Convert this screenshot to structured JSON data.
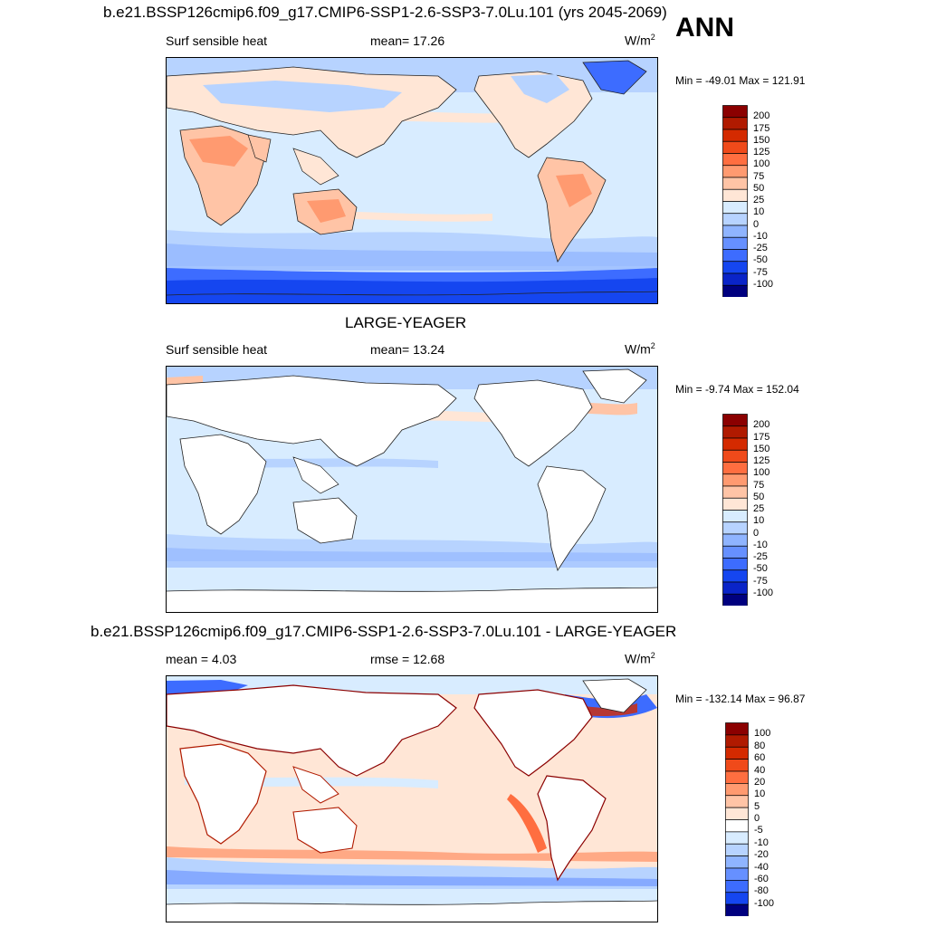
{
  "season": "ANN",
  "panels": [
    {
      "title": "b.e21.BSSP126cmip6.f09_g17.CMIP6-SSP1-2.6-SSP3-7.0Lu.101 (yrs 2045-2069)",
      "variable": "Surf sensible heat",
      "stat1": "mean=  17.26",
      "stat2": "",
      "units": "W/m",
      "units_sup": "2",
      "minmax": "Min = -49.01 Max = 121.91"
    },
    {
      "title": "LARGE-YEAGER",
      "variable": "Surf sensible heat",
      "stat1": "mean=  13.24",
      "stat2": "",
      "units": "W/m",
      "units_sup": "2",
      "minmax": "Min =  -9.74 Max = 152.04"
    },
    {
      "title": "b.e21.BSSP126cmip6.f09_g17.CMIP6-SSP1-2.6-SSP3-7.0Lu.101 - LARGE-YEAGER",
      "variable": "",
      "stat1": "mean =   4.03",
      "stat2": "rmse =  12.68",
      "units": "W/m",
      "units_sup": "2",
      "minmax": "Min = -132.14 Max =  96.87"
    }
  ],
  "chart_data": [
    {
      "type": "heatmap",
      "title": "b.e21.BSSP126cmip6.f09_g17.CMIP6-SSP1-2.6-SSP3-7.0Lu.101 (yrs 2045-2069)",
      "variable": "Surf sensible heat",
      "mean": 17.26,
      "min": -49.01,
      "max": 121.91,
      "colorbar_levels": [
        200,
        175,
        150,
        125,
        100,
        75,
        50,
        25,
        10,
        0,
        -10,
        -25,
        -50,
        -75,
        -100
      ],
      "colors": [
        "#8b0000",
        "#b01a00",
        "#d42a00",
        "#f04a1a",
        "#ff6e40",
        "#ff9a70",
        "#ffc4a6",
        "#ffe6d6",
        "#d8ecff",
        "#b7d3ff",
        "#8fb4ff",
        "#6690ff",
        "#3d6cff",
        "#1546f0",
        "#0a24c8",
        "#00007f"
      ]
    },
    {
      "type": "heatmap",
      "title": "LARGE-YEAGER",
      "variable": "Surf sensible heat",
      "mean": 13.24,
      "min": -9.74,
      "max": 152.04,
      "colorbar_levels": [
        200,
        175,
        150,
        125,
        100,
        75,
        50,
        25,
        10,
        0,
        -10,
        -25,
        -50,
        -75,
        -100
      ],
      "colors": [
        "#8b0000",
        "#b01a00",
        "#d42a00",
        "#f04a1a",
        "#ff6e40",
        "#ff9a70",
        "#ffc4a6",
        "#ffe6d6",
        "#d8ecff",
        "#b7d3ff",
        "#8fb4ff",
        "#6690ff",
        "#3d6cff",
        "#1546f0",
        "#0a24c8",
        "#00007f"
      ]
    },
    {
      "type": "heatmap",
      "title": "b.e21.BSSP126cmip6.f09_g17.CMIP6-SSP1-2.6-SSP3-7.0Lu.101 - LARGE-YEAGER",
      "mean": 4.03,
      "rmse": 12.68,
      "min": -132.14,
      "max": 96.87,
      "colorbar_levels": [
        100,
        80,
        60,
        40,
        20,
        10,
        5,
        0,
        -5,
        -10,
        -20,
        -40,
        -60,
        -80,
        -100
      ],
      "colors": [
        "#8b0000",
        "#b01a00",
        "#d42a00",
        "#f04a1a",
        "#ff6e40",
        "#ff9a70",
        "#ffc4a6",
        "#ffe6d6",
        "#ffffff",
        "#d8ecff",
        "#b7d3ff",
        "#8fb4ff",
        "#6690ff",
        "#3d6cff",
        "#1546f0",
        "#00007f"
      ]
    }
  ]
}
